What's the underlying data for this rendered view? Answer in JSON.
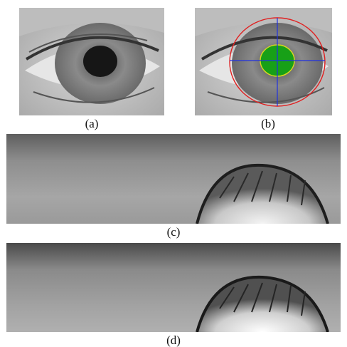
{
  "figure": {
    "panels": [
      {
        "id": "a",
        "caption": "(a)",
        "content": "eye-image"
      },
      {
        "id": "b",
        "caption": "(b)",
        "content": "eye-image-with-segmentation"
      },
      {
        "id": "c",
        "caption": "(c)",
        "content": "normalized-iris-strip"
      },
      {
        "id": "d",
        "caption": "(d)",
        "content": "enhanced-iris-strip"
      }
    ],
    "overlay_colors": {
      "iris_boundary": "#e02020",
      "pupil_boundary": "#d8d820",
      "axes": "#2030e0",
      "pupil_fill": "#17a017"
    }
  }
}
